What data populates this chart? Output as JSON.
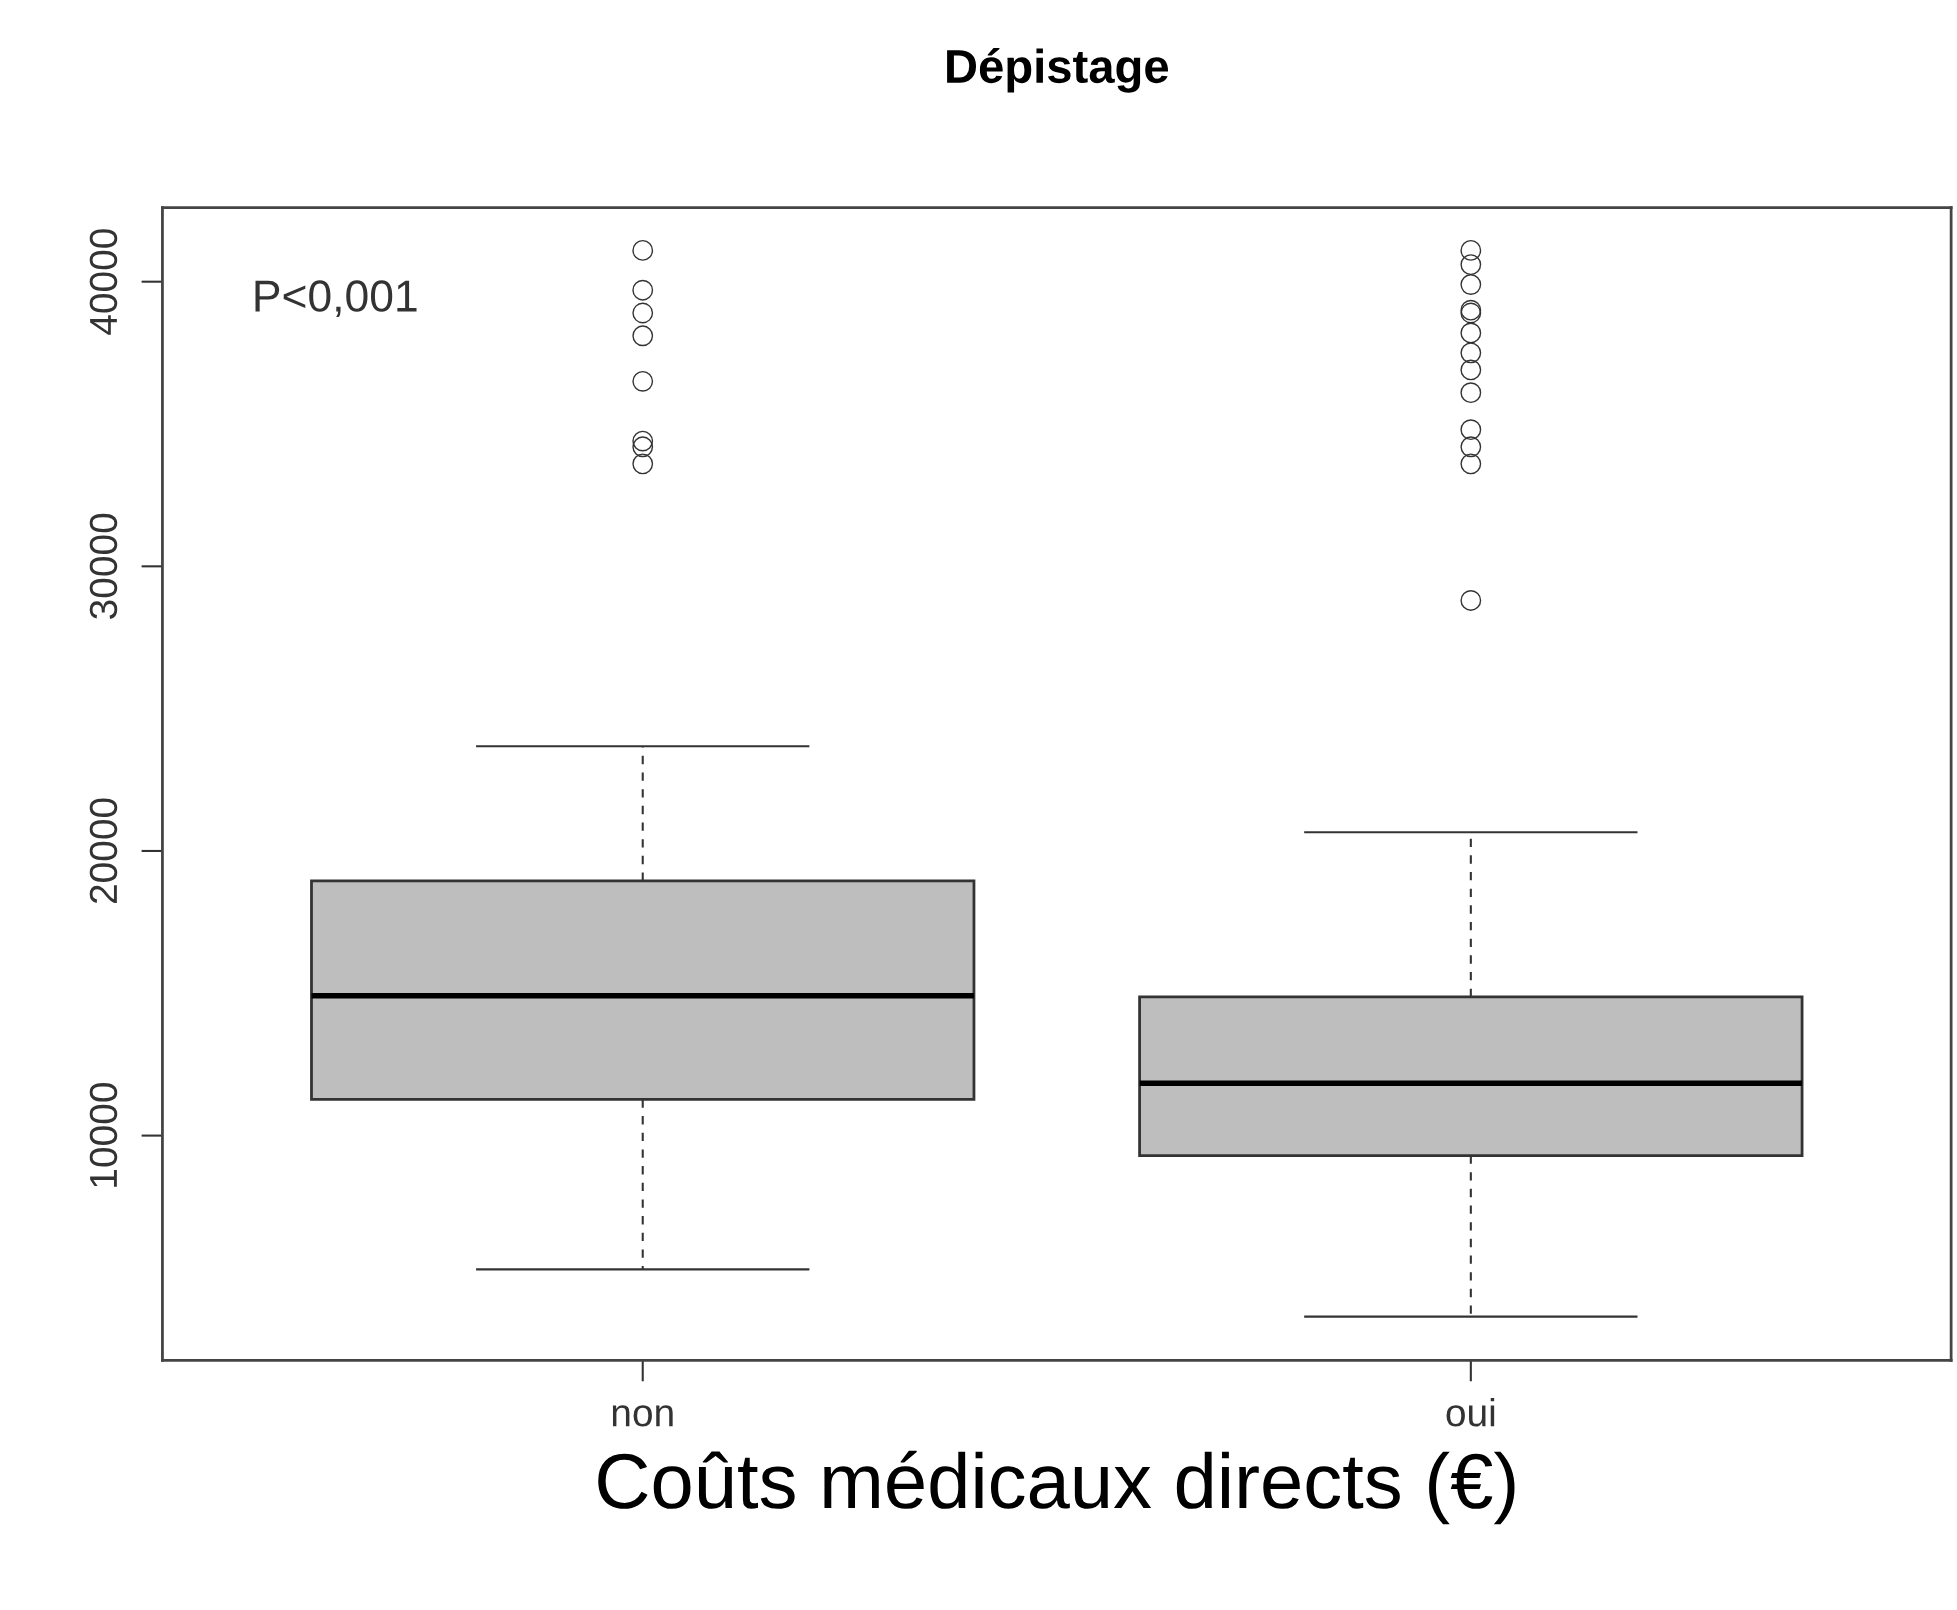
{
  "chart_data": {
    "type": "box",
    "title": "Dépistage",
    "xlabel": "Coûts médicaux directs (€)",
    "categories": [
      "non",
      "oui"
    ],
    "boxes": [
      {
        "low": 5300,
        "q1": 11270,
        "median": 14910,
        "q3": 18950,
        "high": 23680,
        "outliers": [
          41100,
          39700,
          38900,
          38100,
          36500,
          34400,
          34200,
          33600
        ]
      },
      {
        "low": 3640,
        "q1": 9300,
        "median": 11840,
        "q3": 14870,
        "high": 20660,
        "outliers": [
          41100,
          40600,
          39900,
          39000,
          38900,
          38200,
          37500,
          36900,
          36100,
          34800,
          34200,
          33600,
          28800
        ]
      }
    ],
    "color": "#bebebe",
    "ylim": [
      2100,
      42600
    ],
    "yticks": [
      10000,
      20000,
      30000,
      40000
    ],
    "grid": false,
    "annotations": [
      "P<0,001"
    ]
  }
}
